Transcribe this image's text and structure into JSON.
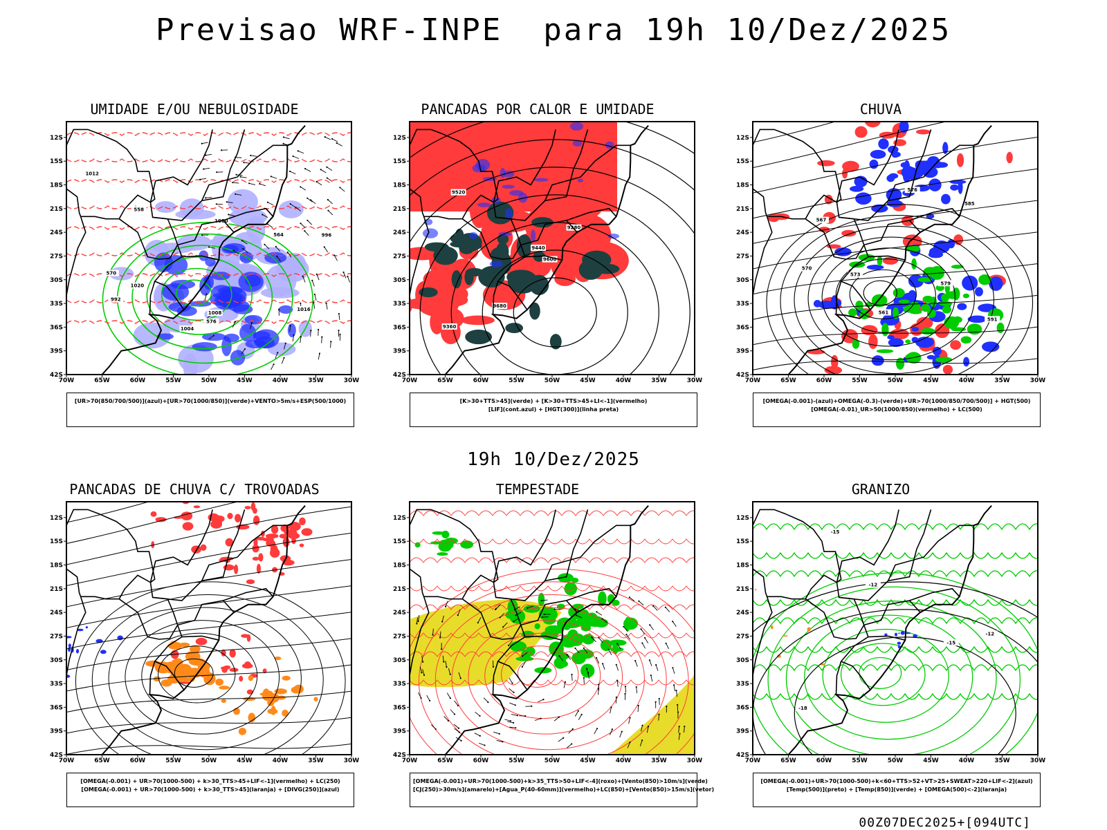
{
  "header": {
    "title": "Previsao WRF-INPE  para 19h 10/Dez/2025",
    "row_title": "19h 10/Dez/2025",
    "run_stamp": "00Z07DEC2025+[094UTC]"
  },
  "axes": {
    "lat_labels": [
      "12S",
      "15S",
      "18S",
      "21S",
      "24S",
      "27S",
      "30S",
      "33S",
      "36S",
      "39S",
      "42S"
    ],
    "lon_labels": [
      "70W",
      "65W",
      "60W",
      "55W",
      "50W",
      "45W",
      "40W",
      "35W",
      "30W"
    ]
  },
  "colors": {
    "red": "#ff3b3b",
    "blue": "#2030ff",
    "light_blue": "#b0b0ff",
    "green": "#00cc00",
    "dark_teal": "#1e4040",
    "orange": "#ff8a1a",
    "yellow": "#e8dc2a",
    "black": "#000000"
  },
  "panels": [
    {
      "title": "UMIDADE E/OU NEBULOSIDADE",
      "legend": [
        "[UR>70(850/700/500)](azul)+[UR>70(1000/850)](verde)+VENTO>5m/s+ESP(500/1000)"
      ],
      "contour_labels": [
        "1004",
        "1008",
        "1000",
        "1012",
        "996",
        "992",
        "576",
        "570",
        "564",
        "558",
        "1020",
        "1016"
      ]
    },
    {
      "title": "PANCADAS POR CALOR E UMIDADE",
      "legend": [
        "[K>30+TTS>45](verde) + [K>30+TTS>45+LI<-1](vermelho)",
        "[LIF](cont.azul) + [HGT(300)](linha preta)"
      ],
      "contour_labels": [
        "9600",
        "9520",
        "9440",
        "9360",
        "9280",
        "9680"
      ]
    },
    {
      "title": "CHUVA",
      "legend": [
        "[OMEGA(-0.001)-(azul)+OMEGA(-0.3)-(verde)+UR>70(1000/850/700/500)] + HGT(500)",
        "[OMEGA(-0.01)_UR>50(1000/850)(vermelho) + LC(500)"
      ],
      "contour_labels": [
        "576",
        "579",
        "573",
        "570",
        "567",
        "561",
        "585",
        "591"
      ]
    },
    {
      "title": "PANCADAS DE CHUVA C/ TROVOADAS",
      "legend": [
        "[OMEGA(-0.001) + UR>70(1000-500) + k>30_TTS>45+LIF<-1](vermelho) + LC(250)",
        "[OMEGA(-0.001) + UR>70(1000-500) + k>30_TTS>45](laranja) + [DIVG(250)](azul)"
      ],
      "contour_labels": []
    },
    {
      "title": "TEMPESTADE",
      "legend": [
        "[OMEGA(-0.001)+UR>70(1000-500)+k>35_TTS>50+LIF<-4](roxo)+[Vento(850)>10m/s](verde)",
        "[CJ(250)>30m/s](amarelo)+[Agua_P(40-60mm)](vermelho)+LC(850)+[Vento(850)>15m/s](vetor)"
      ],
      "contour_labels": []
    },
    {
      "title": "GRANIZO",
      "legend": [
        "[OMEGA(-0.001)+UR>70(1000-500)+k<60+TTS>52+VT>25+SWEAT>220+LIF<-2](azul)",
        "[Temp(500)](preto) + [Temp(850)](verde) + [OMEGA(500)<-2](laranja)"
      ],
      "contour_labels": [
        "-15",
        "-12",
        "-18",
        "-15",
        "-12"
      ]
    }
  ]
}
